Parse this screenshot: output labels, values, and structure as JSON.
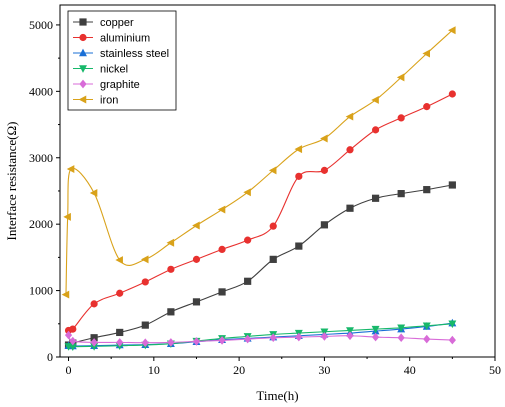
{
  "chart_data": {
    "type": "line",
    "xlabel": "Time(h)",
    "ylabel": "Interface resistance(Ω)",
    "xlim": [
      -1,
      50
    ],
    "ylim": [
      0,
      5300
    ],
    "xticks": [
      0,
      10,
      20,
      30,
      40,
      50
    ],
    "yticks": [
      0,
      1000,
      2000,
      3000,
      4000,
      5000
    ],
    "legend_position": "top-left",
    "series": [
      {
        "name": "copper",
        "color": "#3f3f3f",
        "marker": "square",
        "x": [
          0,
          0.5,
          3,
          6,
          9,
          12,
          15,
          18,
          21,
          24,
          27,
          30,
          33,
          36,
          39,
          42,
          45
        ],
        "y": [
          180,
          210,
          290,
          370,
          480,
          680,
          830,
          980,
          1140,
          1470,
          1670,
          1990,
          2240,
          2390,
          2460,
          2520,
          2590
        ]
      },
      {
        "name": "aluminium",
        "color": "#e8312f",
        "marker": "circle",
        "x": [
          0,
          0.5,
          3,
          6,
          9,
          12,
          15,
          18,
          21,
          24,
          27,
          30,
          33,
          36,
          39,
          42,
          45
        ],
        "y": [
          400,
          420,
          800,
          960,
          1130,
          1320,
          1470,
          1620,
          1760,
          1970,
          2720,
          2810,
          3120,
          3420,
          3600,
          3770,
          3960
        ]
      },
      {
        "name": "stainless steel",
        "color": "#1a6fd6",
        "marker": "triangle-up",
        "x": [
          0,
          0.5,
          3,
          6,
          9,
          12,
          15,
          18,
          21,
          24,
          27,
          30,
          33,
          36,
          39,
          42,
          45
        ],
        "y": [
          170,
          165,
          170,
          180,
          185,
          200,
          230,
          260,
          280,
          300,
          320,
          340,
          360,
          390,
          420,
          460,
          510
        ]
      },
      {
        "name": "nickel",
        "color": "#17b86a",
        "marker": "triangle-down",
        "x": [
          0,
          0.5,
          3,
          6,
          9,
          12,
          15,
          18,
          21,
          24,
          27,
          30,
          33,
          36,
          39,
          42,
          45
        ],
        "y": [
          160,
          155,
          160,
          170,
          180,
          200,
          240,
          280,
          310,
          340,
          360,
          380,
          400,
          420,
          440,
          470,
          500
        ]
      },
      {
        "name": "graphite",
        "color": "#d86bd8",
        "marker": "diamond",
        "x": [
          0,
          0.5,
          3,
          6,
          9,
          12,
          15,
          18,
          21,
          24,
          27,
          30,
          33,
          36,
          39,
          42,
          45
        ],
        "y": [
          330,
          240,
          220,
          220,
          215,
          220,
          235,
          250,
          270,
          290,
          300,
          310,
          320,
          300,
          290,
          270,
          255
        ]
      },
      {
        "name": "iron",
        "color": "#d9a21a",
        "marker": "triangle-left",
        "x": [
          -0.3,
          -0.1,
          0.3,
          3,
          6,
          9,
          12,
          15,
          18,
          21,
          24,
          27,
          30,
          33,
          36,
          39,
          42,
          45
        ],
        "y": [
          940,
          2110,
          2830,
          2470,
          1460,
          1470,
          1720,
          1980,
          2220,
          2480,
          2810,
          3130,
          3290,
          3620,
          3870,
          4210,
          4570,
          4920
        ]
      }
    ]
  }
}
